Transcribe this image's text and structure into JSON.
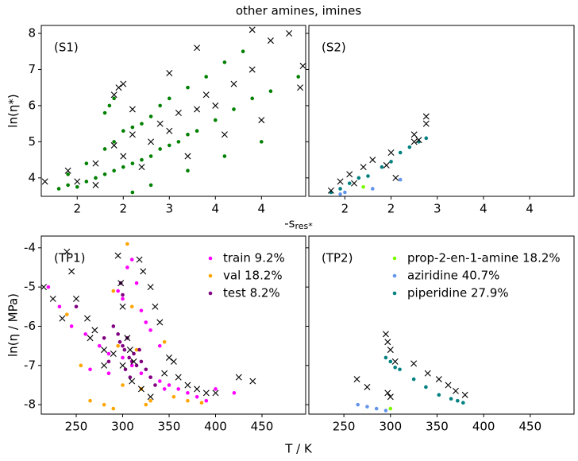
{
  "title": "other amines, imines",
  "xlabel_s": [
    "-s",
    "res*"
  ],
  "xlabel_tp": "T / K",
  "chart_data": [
    {
      "type": "scatter",
      "label": "(S1)",
      "ylabel": "ln(η*)",
      "xlim": [
        1.61,
        4.48
      ],
      "ylim": [
        3.49,
        8.22
      ],
      "xticks": [
        2,
        {
          "value": 2.5,
          "label": "2"
        },
        3,
        {
          "value": 3.5,
          "label": "4"
        },
        4
      ],
      "yticks": [
        4,
        5,
        6,
        7,
        8
      ],
      "series": [
        {
          "color": "#008000",
          "marker": "o",
          "x": [
            1.8,
            1.9,
            2.0,
            2.1,
            2.2,
            2.3,
            2.4,
            2.5,
            2.6,
            2.7,
            2.8,
            2.9,
            3.0,
            3.1,
            3.2,
            3.3,
            3.5,
            3.7,
            3.9,
            4.1,
            4.4,
            1.9,
            2.1,
            2.3,
            2.4,
            2.5,
            2.6,
            2.7,
            2.8,
            2.9,
            3.0,
            3.2,
            3.4,
            3.6,
            3.8,
            2.3,
            2.35,
            2.4,
            2.6,
            2.8,
            3.2,
            3.6,
            4.0
          ],
          "values": [
            3.7,
            3.8,
            3.75,
            3.9,
            4.0,
            4.1,
            4.2,
            4.3,
            4.4,
            4.5,
            4.6,
            4.8,
            4.9,
            5.0,
            5.2,
            5.3,
            5.6,
            5.9,
            6.2,
            6.4,
            6.8,
            4.1,
            4.4,
            4.8,
            5.0,
            5.3,
            5.4,
            5.5,
            5.7,
            6.0,
            6.2,
            6.5,
            6.8,
            7.2,
            7.5,
            5.8,
            6.0,
            6.2,
            3.6,
            3.8,
            4.2,
            4.6,
            5.0
          ]
        },
        {
          "color": "#000000",
          "marker": "x",
          "x": [
            1.65,
            1.9,
            2.0,
            2.2,
            2.4,
            2.5,
            2.6,
            2.8,
            2.9,
            3.0,
            3.1,
            3.3,
            3.4,
            3.5,
            3.7,
            3.9,
            4.1,
            4.3,
            3.9,
            4.42,
            4.45,
            2.4,
            2.45,
            2.5,
            2.6,
            3.2,
            3.6,
            4.0,
            2.2,
            2.7,
            3.3,
            3.0
          ],
          "values": [
            3.9,
            4.2,
            3.9,
            4.4,
            4.9,
            4.6,
            5.2,
            5.0,
            5.5,
            5.3,
            5.8,
            5.9,
            6.3,
            6.0,
            6.6,
            7.0,
            7.8,
            8.0,
            8.1,
            6.5,
            7.1,
            6.3,
            6.5,
            6.6,
            5.9,
            4.6,
            5.2,
            5.6,
            3.8,
            4.3,
            7.6,
            6.9
          ]
        }
      ]
    },
    {
      "type": "scatter",
      "label": "(S2)",
      "sharey": true,
      "xlim": [
        1.61,
        4.48
      ],
      "ylim": [
        3.49,
        8.22
      ],
      "xticks": [
        2,
        {
          "value": 2.5,
          "label": "2"
        },
        3,
        {
          "value": 3.5,
          "label": "4"
        },
        4
      ],
      "yticks": [
        4,
        5,
        6,
        7,
        8
      ],
      "series": [
        {
          "color": "#008080",
          "marker": "o",
          "x": [
            1.85,
            1.95,
            2.05,
            2.15,
            2.25,
            2.4,
            2.5,
            2.6,
            2.7,
            2.8,
            2.88
          ],
          "values": [
            3.6,
            3.7,
            3.85,
            4.0,
            4.05,
            4.3,
            4.45,
            4.7,
            4.85,
            5.0,
            5.1
          ]
        },
        {
          "color": "#7cfc00",
          "marker": "o",
          "x": [
            2.2
          ],
          "values": [
            3.75
          ]
        },
        {
          "color": "#6495ed",
          "marker": "o",
          "x": [
            1.95,
            2.0,
            2.3,
            2.6
          ],
          "values": [
            3.55,
            3.6,
            3.7,
            3.95
          ]
        },
        {
          "color": "#000000",
          "marker": "x",
          "x": [
            1.85,
            1.95,
            2.05,
            2.2,
            2.3,
            2.45,
            2.5,
            2.75,
            2.75,
            2.8,
            2.88,
            2.88,
            2.55,
            2.1
          ],
          "values": [
            3.65,
            3.9,
            4.1,
            4.3,
            4.5,
            4.35,
            4.7,
            5.0,
            5.2,
            5.05,
            5.5,
            5.7,
            4.0,
            3.85
          ]
        }
      ]
    },
    {
      "type": "scatter",
      "label": "(TP1)",
      "ylabel": "ln(η / MPa)",
      "legend": "upper right",
      "xlim": [
        212.4,
        497
      ],
      "ylim": [
        -8.24,
        -3.7
      ],
      "xticks": [
        250,
        300,
        350,
        400,
        450
      ],
      "yticks": [
        -8,
        -7,
        -6,
        -5,
        -4
      ],
      "series": [
        {
          "name": "train 9.2%",
          "color": "#ff00ff",
          "marker": "o",
          "x": [
            220,
            232,
            245,
            260,
            275,
            285,
            295,
            300,
            305,
            310,
            315,
            320,
            325,
            330,
            340,
            300,
            310,
            320,
            330,
            340,
            350,
            360,
            370,
            380,
            390,
            400,
            420,
            265,
            285,
            345
          ],
          "values": [
            -5.0,
            -5.5,
            -6.0,
            -6.2,
            -6.5,
            -6.7,
            -5.1,
            -5.3,
            -4.5,
            -4.3,
            -4.9,
            -5.6,
            -5.9,
            -6.1,
            -6.5,
            -6.8,
            -7.0,
            -7.2,
            -7.3,
            -7.4,
            -7.5,
            -7.6,
            -7.7,
            -7.8,
            -7.9,
            -7.6,
            -7.7,
            -7.1,
            -7.2,
            -7.6
          ]
        },
        {
          "name": "val 18.2%",
          "color": "#ffa500",
          "marker": "o",
          "x": [
            240,
            255,
            265,
            280,
            290,
            300,
            305,
            310,
            315,
            320,
            330,
            345,
            355,
            370,
            385,
            295,
            325,
            290
          ],
          "values": [
            -5.7,
            -7.0,
            -7.9,
            -8.0,
            -8.1,
            -7.5,
            -3.9,
            -5.5,
            -6.6,
            -7.6,
            -7.9,
            -6.4,
            -7.8,
            -7.9,
            -7.95,
            -6.5,
            -8.0,
            -5.1
          ]
        },
        {
          "name": "test 8.2%",
          "color": "#800080",
          "marker": "o",
          "x": [
            295,
            297,
            300,
            302,
            305,
            307,
            310,
            298,
            300,
            312,
            315,
            318,
            320,
            325,
            330,
            290,
            285,
            303,
            308,
            335,
            250,
            280
          ],
          "values": [
            -6.2,
            -6.4,
            -6.5,
            -6.6,
            -6.3,
            -6.8,
            -6.9,
            -4.9,
            -5.2,
            -6.7,
            -7.0,
            -6.6,
            -6.9,
            -7.1,
            -7.3,
            -6.0,
            -6.9,
            -7.1,
            -7.3,
            -7.5,
            -5.5,
            -6.3
          ]
        },
        {
          "color": "#000000",
          "marker": "x",
          "x": [
            215,
            240,
            245,
            250,
            262,
            270,
            280,
            290,
            295,
            298,
            300,
            305,
            308,
            312,
            318,
            322,
            330,
            335,
            340,
            350,
            355,
            360,
            370,
            380,
            390,
            400,
            425,
            440,
            300,
            310,
            320,
            330,
            345,
            280,
            265,
            235,
            225
          ],
          "values": [
            -5.0,
            -4.1,
            -4.6,
            -5.3,
            -5.8,
            -6.1,
            -6.6,
            -6.7,
            -4.2,
            -4.9,
            -5.5,
            -6.3,
            -6.6,
            -6.9,
            -4.3,
            -4.6,
            -5.0,
            -5.5,
            -5.9,
            -6.8,
            -6.9,
            -7.3,
            -7.5,
            -7.6,
            -7.7,
            -7.7,
            -7.3,
            -7.4,
            -7.0,
            -7.4,
            -7.6,
            -7.8,
            -7.2,
            -7.0,
            -6.3,
            -5.8,
            -5.3
          ]
        }
      ]
    },
    {
      "type": "scatter",
      "label": "(TP2)",
      "sharey": true,
      "legend": "upper center",
      "xlim": [
        212.4,
        497
      ],
      "ylim": [
        -8.24,
        -3.7
      ],
      "xticks": [
        250,
        300,
        350,
        400,
        450
      ],
      "yticks": [
        -8,
        -7,
        -6,
        -5,
        -4
      ],
      "series": [
        {
          "name": "prop-2-en-1-amine 18.2%",
          "color": "#7cfc00",
          "marker": "o",
          "x": [
            300
          ],
          "values": [
            -8.1
          ]
        },
        {
          "name": "aziridine 40.7%",
          "color": "#6495ed",
          "marker": "o",
          "x": [
            265,
            275,
            285,
            295
          ],
          "values": [
            -8.0,
            -8.05,
            -8.1,
            -8.15
          ]
        },
        {
          "name": "piperidine 27.9%",
          "color": "#008080",
          "marker": "o",
          "x": [
            295,
            300,
            305,
            310,
            325,
            338,
            352,
            365,
            378,
            372
          ],
          "values": [
            -6.8,
            -6.9,
            -7.05,
            -7.1,
            -7.35,
            -7.55,
            -7.75,
            -7.85,
            -7.95,
            -7.9
          ]
        },
        {
          "color": "#000000",
          "marker": "x",
          "x": [
            264,
            275,
            295,
            297,
            300,
            305,
            300,
            297,
            325,
            340,
            352,
            362,
            370,
            380
          ],
          "values": [
            -7.35,
            -7.55,
            -6.2,
            -6.4,
            -6.6,
            -6.9,
            -7.8,
            -7.7,
            -6.95,
            -7.2,
            -7.35,
            -7.5,
            -7.65,
            -7.75
          ]
        }
      ]
    }
  ]
}
